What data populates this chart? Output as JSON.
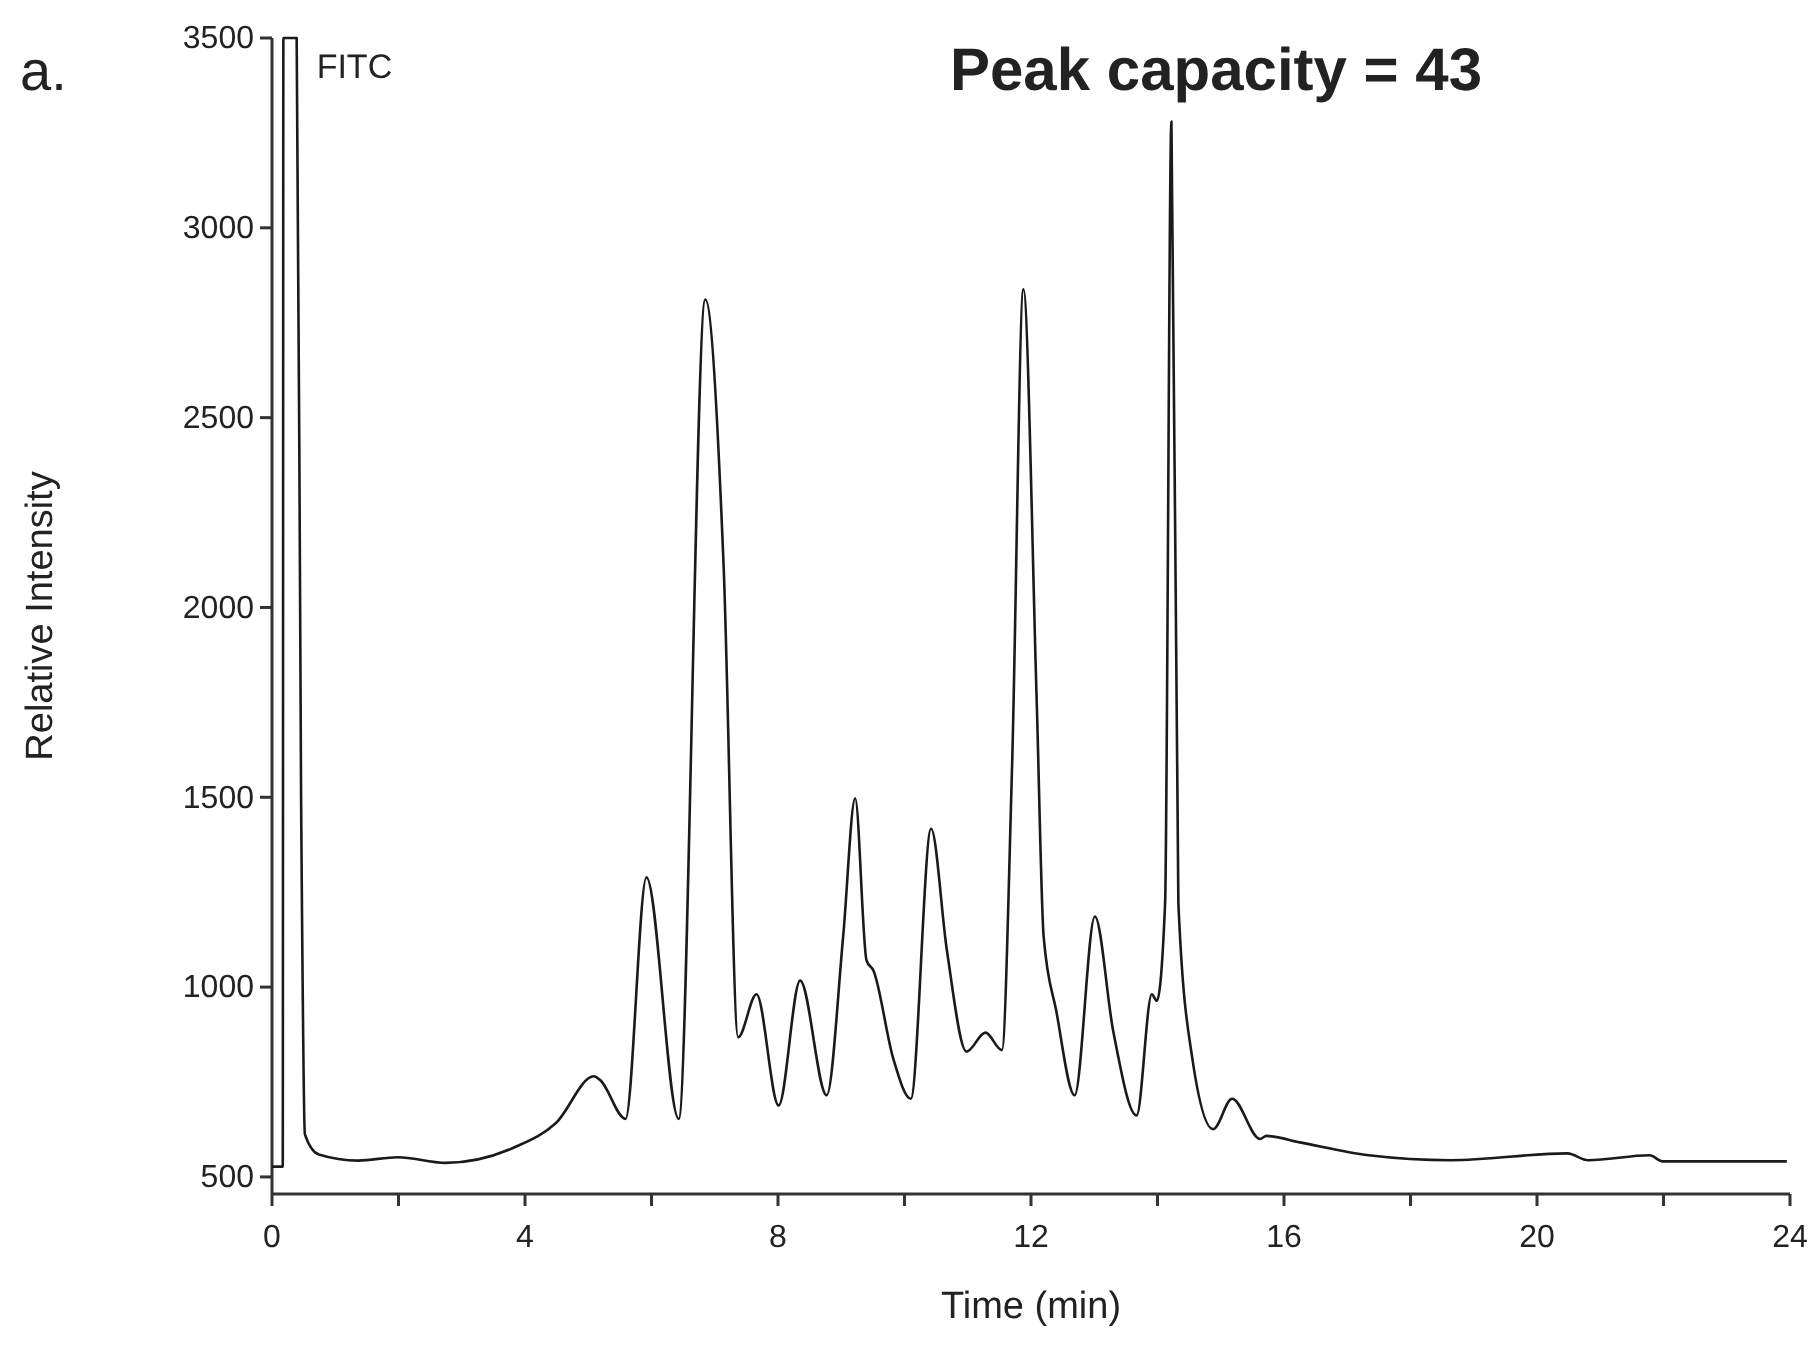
{
  "chart_data": {
    "type": "line",
    "title": "Peak capacity = 43",
    "xlabel": "Time (min)",
    "ylabel": "Relative Intensity",
    "annotations": [
      "a.",
      {
        "text": "FITC",
        "x": 0.39,
        "y": 3500
      }
    ],
    "x": [
      0,
      0.17,
      0.18,
      0.39,
      0.46,
      0.52,
      0.74,
      1.36,
      1.99,
      2.74,
      3.86,
      4.49,
      5.09,
      5.19,
      5.59,
      5.92,
      6.43,
      6.85,
      7.14,
      7.37,
      7.66,
      8.01,
      8.35,
      8.77,
      9.03,
      9.22,
      9.4,
      9.51,
      9.82,
      10.1,
      10.42,
      10.67,
      10.98,
      11.28,
      11.54,
      11.7,
      11.88,
      12.09,
      12.2,
      12.4,
      12.69,
      13.01,
      13.3,
      13.67,
      13.91,
      13.99,
      14.12,
      14.22,
      14.33,
      14.55,
      14.88,
      15.18,
      15.62,
      15.72,
      16.25,
      17.34,
      18.64,
      20.48,
      20.81,
      21.78,
      21.99,
      23.95
    ],
    "series": [
      {
        "color": "#1a1a1a",
        "values": [
          527,
          527,
          3500,
          3500,
          1497,
          612,
          559,
          543,
          552,
          537,
          580,
          642,
          765,
          755,
          653,
          1289,
          653,
          2811,
          2110,
          868,
          981,
          688,
          1017,
          715,
          1133,
          1497,
          1070,
          1043,
          813,
          706,
          1417,
          1097,
          830,
          880,
          834,
          1577,
          2838,
          1754,
          1133,
          937,
          715,
          1186,
          884,
          662,
          981,
          964,
          1221,
          3280,
          1221,
          813,
          626,
          706,
          600,
          608,
          591,
          557,
          544,
          562,
          544,
          557,
          541,
          541
        ]
      }
    ],
    "xlim": [
      0,
      24
    ],
    "xticks": [
      0,
      {
        "value": 2,
        "label": null
      },
      4,
      {
        "value": 6,
        "label": null
      },
      8,
      {
        "value": 10,
        "label": null
      },
      12,
      {
        "value": 14,
        "label": null
      },
      16,
      {
        "value": 18,
        "label": null
      },
      20,
      {
        "value": 22,
        "label": null
      },
      24
    ],
    "ylim": [
      455,
      3500
    ],
    "yticks": [
      500,
      1000,
      1500,
      2000,
      2500,
      3000,
      3500
    ],
    "marker": "none",
    "line_style": "solid"
  }
}
